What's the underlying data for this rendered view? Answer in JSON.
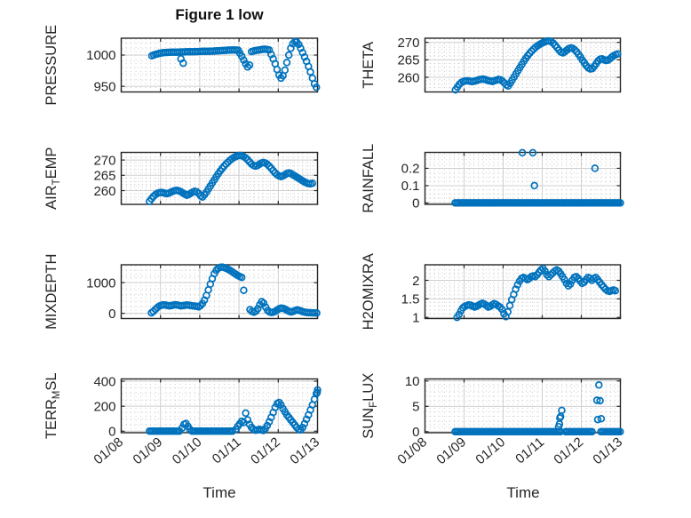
{
  "title": "Figure 1 low",
  "xlabel": "Time",
  "colors": {
    "marker": "#0072BD",
    "axis": "#262626",
    "major_grid": "#cfcfcf",
    "minor_grid": "#c8c8c8",
    "text": "#262626",
    "background": "#ffffff"
  },
  "x_axis": {
    "range": [
      8,
      13
    ],
    "major_ticks": [
      8,
      9,
      10,
      11,
      12,
      13
    ],
    "labels": [
      "01/08",
      "01/09",
      "01/10",
      "01/11",
      "01/12",
      "01/13"
    ],
    "minor_step": 0.125
  },
  "chart_data": [
    {
      "name": "PRESSURE",
      "type": "scatter",
      "row": 0,
      "col": 0,
      "label_parts": [
        {
          "text": "PRESSURE"
        }
      ],
      "ylim": [
        941,
        1027
      ],
      "yticks": [
        950,
        1000
      ],
      "ytick_labels": [
        "950",
        "1000"
      ],
      "minor_y_step": 10,
      "segments": [
        {
          "t0": 8.78,
          "dt": 0.05,
          "y": [
            999,
            1000.2,
            1001.2,
            1002,
            1002.8,
            1003.4,
            1003.8,
            1004.1,
            1004.3,
            1004.4,
            1004.5,
            1004.5,
            1004.6,
            1004.7,
            1004.8,
            1004.9,
            1005,
            1005.1,
            1005.2,
            1005.3,
            1005.4,
            1005.4,
            1005.5,
            1005.6,
            1005.7,
            1005.8,
            1005.9,
            1006,
            1006,
            1006.1,
            1006.2,
            1006.3,
            1006.5,
            1006.7,
            1006.9,
            1007.1,
            1007.3,
            1007.5,
            1007.7,
            1007.9,
            1008,
            1008.1,
            1008.1,
            1008,
            1007.8
          ]
        },
        {
          "t0": 11.02,
          "dt": 0.05,
          "y": [
            1003,
            998,
            992,
            986,
            981,
            984
          ]
        },
        {
          "t0": 11.32,
          "dt": 0.05,
          "y": [
            1005.5,
            1006.5,
            1007.2,
            1007.8,
            1008.3,
            1008.8,
            1009.2,
            1009.4,
            1009,
            1008.2
          ]
        },
        {
          "t0": 11.82,
          "dt": 0.05,
          "y": [
            1001,
            994,
            986,
            977,
            968,
            963,
            967,
            976,
            988,
            1000,
            1011,
            1018,
            1021.5,
            1021,
            1017,
            1011,
            1004,
            997,
            990,
            982,
            973,
            963,
            954,
            948.5
          ]
        }
      ],
      "extra_points": [
        [
          9.52,
          994
        ],
        [
          9.58,
          987
        ]
      ]
    },
    {
      "name": "THETA",
      "type": "scatter",
      "row": 0,
      "col": 1,
      "label_parts": [
        {
          "text": "THETA"
        }
      ],
      "ylim": [
        255.8,
        271.2
      ],
      "yticks": [
        260,
        265,
        270
      ],
      "ytick_labels": [
        "260",
        "265",
        "270"
      ],
      "minor_y_step": 1,
      "segments": [
        {
          "t0": 8.78,
          "dt": 0.05,
          "y": [
            256.4,
            257.2,
            258,
            258.5,
            258.8,
            258.9,
            259,
            258.9,
            258.8,
            258.8,
            258.9,
            259.1,
            259.3,
            259.4,
            259.5,
            259.4,
            259.2,
            259,
            258.9,
            258.8,
            259,
            259.2,
            259.4,
            259.3,
            258.9,
            258.4,
            257.8,
            257.5,
            258.3,
            259.2,
            260.1,
            261,
            261.9,
            262.8,
            263.7,
            264.6,
            265.4,
            266.2,
            266.9,
            267.5,
            268.1,
            268.6,
            269,
            269.4,
            269.7,
            270,
            270.2,
            270.4,
            270.4,
            270.2,
            269.8,
            269.2,
            268.5,
            267.8,
            267.2,
            267,
            267.3,
            267.8,
            268.2,
            268.4,
            268.3,
            267.9,
            267.3,
            266.6,
            265.8,
            264.9,
            264.1,
            263.3,
            262.7,
            262.4,
            262.5,
            263.1,
            263.9,
            264.7,
            265.2,
            265.3,
            265,
            264.8,
            264.9,
            265.3,
            265.8,
            266.2,
            266.5,
            266.7
          ]
        }
      ],
      "extra_points": []
    },
    {
      "name": "AIR_TEMP",
      "type": "scatter",
      "row": 1,
      "col": 0,
      "label_parts": [
        {
          "text": "AIR"
        },
        {
          "text": "T",
          "sub": true
        },
        {
          "text": "EMP"
        }
      ],
      "ylim": [
        255.5,
        272.5
      ],
      "yticks": [
        260,
        265,
        270
      ],
      "ytick_labels": [
        "260",
        "265",
        "270"
      ],
      "minor_y_step": 1,
      "segments": [
        {
          "t0": 8.72,
          "dt": 0.05,
          "y": [
            256.5,
            257.3,
            258.1,
            258.7,
            259.1,
            259.3,
            259.4,
            259.3,
            259.1,
            259,
            259.2,
            259.5,
            259.8,
            260,
            260.1,
            259.9,
            259.6,
            259.2,
            258.8,
            258.5,
            258.7,
            259.1,
            259.5,
            259.8,
            259.6,
            259.1,
            258.3,
            257.9,
            258.6,
            259.5,
            260.5,
            261.5,
            262.5,
            263.5,
            264.5,
            265.5,
            266.4,
            267.2,
            268,
            268.7,
            269.3,
            269.9,
            270.4,
            270.8,
            271.1,
            271.4,
            271.5,
            271.4,
            271.1,
            270.7,
            270.1,
            269.4,
            268.7,
            268.2,
            268,
            268.2,
            268.6,
            269,
            269.2,
            269,
            268.6,
            268,
            267.3,
            266.5,
            265.8,
            265.2,
            264.8,
            264.6,
            264.8,
            265.2,
            265.6,
            265.8,
            265.6,
            265.2,
            264.8,
            264.4,
            264,
            263.6,
            263.2,
            262.8,
            262.5,
            262.3,
            262.2,
            262.4
          ]
        }
      ],
      "extra_points": []
    },
    {
      "name": "RAINFALL",
      "type": "scatter",
      "row": 1,
      "col": 1,
      "label_parts": [
        {
          "text": "RAINFALL"
        }
      ],
      "ylim": [
        -0.008,
        0.292
      ],
      "yticks": [
        0,
        0.1,
        0.2
      ],
      "ytick_labels": [
        "0",
        "0.1",
        "0.2"
      ],
      "minor_y_step": 0.025,
      "segments": [
        {
          "t0": 8.77,
          "t1": 13.0,
          "dt": 0.045,
          "const": 0
        }
      ],
      "extra_points": [
        [
          10.49,
          0.29
        ],
        [
          10.76,
          0.29
        ],
        [
          10.8,
          0.1
        ],
        [
          12.35,
          0.2
        ]
      ]
    },
    {
      "name": "MIXDEPTH",
      "type": "scatter",
      "row": 2,
      "col": 0,
      "label_parts": [
        {
          "text": "MIXDEPTH"
        }
      ],
      "ylim": [
        -170,
        1580
      ],
      "yticks": [
        0,
        1000
      ],
      "ytick_labels": [
        "0",
        "1000"
      ],
      "minor_y_step": 200,
      "segments": [
        {
          "t0": 8.77,
          "dt": 0.05,
          "y": [
            15,
            60,
            130,
            190,
            235,
            260,
            275,
            270,
            255,
            240,
            250,
            265,
            278,
            272,
            258,
            245,
            250,
            262,
            272,
            265,
            252,
            242,
            235,
            225,
            210,
            250,
            320,
            430,
            580,
            760,
            950,
            1130,
            1290,
            1400,
            1465,
            1495,
            1505,
            1490,
            1465,
            1435,
            1400,
            1360,
            1315,
            1270,
            1230,
            1195,
            1170
          ]
        },
        {
          "t0": 11.28,
          "dt": 0.05,
          "y": [
            120,
            60,
            35,
            70,
            150,
            280,
            380,
            330,
            200,
            90,
            40,
            25,
            40,
            70,
            110,
            150,
            170,
            160,
            130,
            90,
            60,
            45,
            60,
            90,
            110,
            100,
            75,
            50,
            35,
            25,
            20,
            18,
            15,
            14,
            12
          ]
        }
      ],
      "extra_points": [
        [
          11.12,
          750
        ]
      ]
    },
    {
      "name": "H2OMIXRA",
      "type": "scatter",
      "row": 2,
      "col": 1,
      "label_parts": [
        {
          "text": "H2OMIXRA"
        }
      ],
      "ylim": [
        0.97,
        2.42
      ],
      "yticks": [
        1,
        1.5,
        2
      ],
      "ytick_labels": [
        "1",
        "1.5",
        "2"
      ],
      "minor_y_step": 0.1,
      "segments": [
        {
          "t0": 8.82,
          "dt": 0.05,
          "y": [
            1,
            1.08,
            1.18,
            1.26,
            1.3,
            1.32,
            1.34,
            1.33,
            1.3,
            1.28,
            1.3,
            1.33,
            1.36,
            1.38,
            1.36,
            1.32,
            1.28,
            1.3,
            1.34,
            1.37,
            1.35,
            1.31,
            1.28,
            1.22,
            1.1,
            1.02,
            1.15,
            1.32,
            1.48,
            1.62,
            1.76,
            1.88,
            1.98,
            2.05,
            2.08,
            2.05,
            2.02,
            2.05,
            2.1,
            2.12,
            2.1,
            2.15,
            2.22,
            2.28,
            2.32,
            2.25,
            2.15,
            2.1,
            2.15,
            2.2,
            2.25,
            2.28,
            2.25,
            2.18,
            2.1,
            2.02,
            1.92,
            1.85,
            1.9,
            2,
            2.08,
            2.1,
            2.05,
            1.98,
            1.92,
            1.95,
            2.02,
            2.08,
            2.05,
            2,
            2.05,
            2.08,
            2.02,
            1.95,
            1.88,
            1.82,
            1.76,
            1.72,
            1.7,
            1.72,
            1.74,
            1.72
          ]
        }
      ],
      "extra_points": []
    },
    {
      "name": "TERR_MSL",
      "type": "scatter",
      "row": 3,
      "col": 0,
      "label_parts": [
        {
          "text": "TERR"
        },
        {
          "text": "M",
          "sub": true
        },
        {
          "text": "SL"
        }
      ],
      "ylim": [
        -12,
        418
      ],
      "yticks": [
        0,
        200,
        400
      ],
      "ytick_labels": [
        "0",
        "200",
        "400"
      ],
      "minor_y_step": 50,
      "segments": [
        {
          "t0": 8.72,
          "t1": 9.52,
          "dt": 0.045,
          "const": 0
        },
        {
          "t0": 9.55,
          "dt": 0.05,
          "y": [
            25,
            55,
            62,
            40,
            15
          ]
        },
        {
          "t0": 9.8,
          "t1": 10.87,
          "dt": 0.045,
          "const": 0
        },
        {
          "t0": 10.92,
          "dt": 0.05,
          "y": [
            15,
            40,
            60,
            80,
            70,
            145,
            90,
            55,
            30,
            15,
            8,
            10,
            14,
            10,
            6
          ]
        },
        {
          "t0": 11.67,
          "dt": 0.05,
          "y": [
            20,
            45,
            75,
            110,
            150,
            190,
            220,
            230,
            210,
            180,
            155,
            130,
            110,
            90,
            70,
            50,
            30,
            15,
            10,
            30,
            60,
            95,
            130,
            170,
            210,
            255,
            300
          ]
        }
      ],
      "extra_points": [
        [
          13.0,
          330
        ],
        [
          12.99,
          310
        ]
      ]
    },
    {
      "name": "SUN_FLUX",
      "type": "scatter",
      "row": 3,
      "col": 1,
      "label_parts": [
        {
          "text": "SUN"
        },
        {
          "text": "F",
          "sub": true
        },
        {
          "text": "LUX"
        }
      ],
      "ylim": [
        -0.2,
        10.4
      ],
      "yticks": [
        0,
        5,
        10
      ],
      "ytick_labels": [
        "0",
        "5",
        "10"
      ],
      "minor_y_step": 1,
      "segments": [
        {
          "t0": 8.77,
          "t1": 11.47,
          "dt": 0.045,
          "const": 0
        },
        {
          "t0": 11.6,
          "t1": 12.31,
          "dt": 0.045,
          "const": 0
        },
        {
          "t0": 12.5,
          "t1": 13.0,
          "dt": 0.045,
          "const": 0
        }
      ],
      "extra_points": [
        [
          11.42,
          1.0
        ],
        [
          11.44,
          1.5
        ],
        [
          11.45,
          2.7
        ],
        [
          11.47,
          3.0
        ],
        [
          11.5,
          4.2
        ],
        [
          12.4,
          6.2
        ],
        [
          12.42,
          2.4
        ],
        [
          12.45,
          9.2
        ],
        [
          12.48,
          6.1
        ],
        [
          12.51,
          2.55
        ]
      ]
    }
  ]
}
